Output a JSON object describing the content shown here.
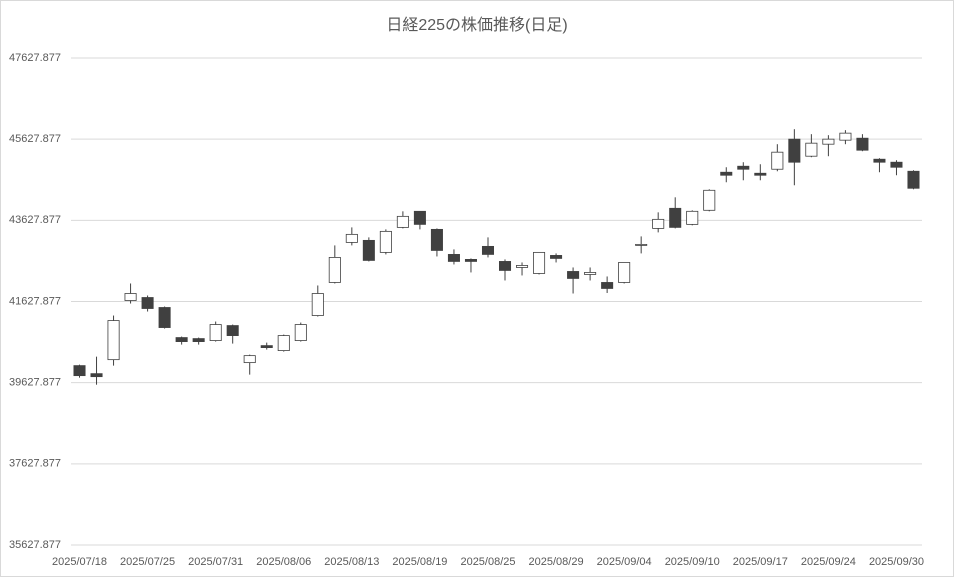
{
  "chart_data": {
    "type": "candlestick",
    "title": "日経225の株価推移(日足)",
    "categories": [
      "2025/07/18",
      null,
      null,
      null,
      "2025/07/25",
      null,
      null,
      null,
      "2025/07/31",
      null,
      null,
      null,
      "2025/08/06",
      null,
      null,
      null,
      "2025/08/13",
      null,
      null,
      null,
      "2025/08/19",
      null,
      null,
      null,
      "2025/08/25",
      null,
      null,
      null,
      "2025/08/29",
      null,
      null,
      null,
      "2025/09/04",
      null,
      null,
      null,
      "2025/09/10",
      null,
      null,
      null,
      "2025/09/17",
      null,
      null,
      null,
      "2025/09/24",
      null,
      null,
      null,
      "2025/09/30",
      null
    ],
    "open": [
      40048,
      39850,
      40195,
      41652,
      41726,
      41480,
      40739,
      40714,
      40665,
      41035,
      40122,
      40541,
      40418,
      40665,
      41282,
      42097,
      43084,
      43134,
      42838,
      43454,
      43850,
      43405,
      42788,
      42665,
      42986,
      42615,
      42467,
      42319,
      42763,
      42368,
      42294,
      42097,
      42097,
      43010,
      43429,
      43924,
      43528,
      43875,
      44813,
      44961,
      44788,
      44887,
      45628,
      45208,
      45504,
      45603,
      45652,
      45134,
      45060,
      44837
    ],
    "high": [
      40072,
      40269,
      41282,
      42072,
      41776,
      41505,
      40764,
      40739,
      41134,
      41060,
      40319,
      40615,
      40813,
      41109,
      42023,
      43010,
      43454,
      43208,
      43405,
      43850,
      43850,
      43429,
      42912,
      42689,
      43208,
      42665,
      42590,
      42838,
      42813,
      42467,
      42467,
      42245,
      42590,
      43232,
      43825,
      44195,
      43875,
      44393,
      44936,
      45060,
      45010,
      45504,
      45874,
      45751,
      45726,
      45850,
      45751,
      45159,
      45109,
      44862
    ],
    "low": [
      39751,
      39578,
      40048,
      41578,
      41381,
      40961,
      40566,
      40566,
      40640,
      40591,
      39826,
      40443,
      40393,
      40640,
      41257,
      42072,
      43010,
      42615,
      42788,
      43429,
      43405,
      42738,
      42541,
      42344,
      42714,
      42146,
      42270,
      42294,
      42590,
      41825,
      42146,
      41838,
      42072,
      42813,
      43331,
      43429,
      43504,
      43850,
      44566,
      44615,
      44615,
      44837,
      44492,
      45183,
      45208,
      45504,
      45331,
      44813,
      44739,
      44393
    ],
    "close": [
      39801,
      39776,
      41158,
      41825,
      41455,
      40986,
      40640,
      40640,
      41060,
      40788,
      40294,
      40492,
      40788,
      41060,
      41825,
      42714,
      43282,
      42640,
      43356,
      43726,
      43528,
      42886,
      42615,
      42615,
      42788,
      42393,
      42516,
      42838,
      42689,
      42196,
      42344,
      41949,
      42590,
      43035,
      43652,
      43454,
      43850,
      44368,
      44739,
      44887,
      44739,
      45307,
      45060,
      45529,
      45628,
      45776,
      45356,
      45060,
      44936,
      44418
    ],
    "up_color": "#ffffff",
    "down_color": "#404040",
    "line_color": "#404040",
    "ylim": [
      35627.877,
      47627.877
    ],
    "yticks": [
      35627.877,
      37627.877,
      39627.877,
      41627.877,
      43627.877,
      45627.877,
      47627.877
    ],
    "grid": true
  }
}
